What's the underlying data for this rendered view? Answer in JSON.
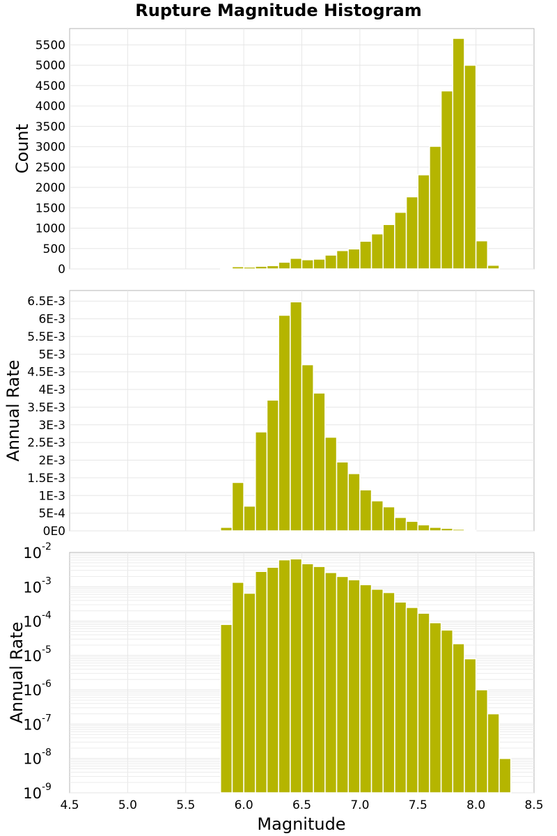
{
  "title": "Rupture Magnitude Histogram",
  "colors": {
    "bar": "#b5b500",
    "frame": "#b4b4b4",
    "grid": "#e6e6e6"
  },
  "chart_data": [
    {
      "type": "bar",
      "ylabel": "Count",
      "ylim": [
        0,
        5900
      ],
      "yticks": [
        0,
        500,
        1000,
        1500,
        2000,
        2500,
        3000,
        3500,
        4000,
        4500,
        5000,
        5500
      ],
      "ytick_labels": [
        "0",
        "500",
        "1000",
        "1500",
        "2000",
        "2500",
        "3000",
        "3500",
        "4000",
        "4500",
        "5000",
        "5500"
      ],
      "xlim": [
        4.5,
        8.5
      ],
      "bin_width": 0.1,
      "x": [
        5.85,
        5.95,
        6.05,
        6.15,
        6.25,
        6.35,
        6.45,
        6.55,
        6.65,
        6.75,
        6.85,
        6.95,
        7.05,
        7.15,
        7.25,
        7.35,
        7.45,
        7.55,
        7.65,
        7.75,
        7.85,
        7.95,
        8.05,
        8.15,
        8.25
      ],
      "values": [
        20,
        55,
        45,
        65,
        80,
        165,
        260,
        225,
        240,
        340,
        450,
        490,
        680,
        860,
        1090,
        1390,
        1770,
        2310,
        3010,
        4370,
        5660,
        5000,
        690,
        90,
        0
      ],
      "grid": true
    },
    {
      "type": "bar",
      "ylabel": "Annual Rate",
      "ylim": [
        0,
        0.0068
      ],
      "yticks": [
        0,
        0.0005,
        0.001,
        0.0015,
        0.002,
        0.0025,
        0.003,
        0.0035,
        0.004,
        0.0045,
        0.005,
        0.0055,
        0.006,
        0.0065
      ],
      "ytick_labels": [
        "0E0",
        "5E-4",
        "1E-3",
        "1.5E-3",
        "2E-3",
        "2.5E-3",
        "3E-3",
        "3.5E-3",
        "4E-3",
        "4.5E-3",
        "5E-3",
        "5.5E-3",
        "6E-3",
        "6.5E-3"
      ],
      "xlim": [
        4.5,
        8.5
      ],
      "bin_width": 0.1,
      "x": [
        5.85,
        5.95,
        6.05,
        6.15,
        6.25,
        6.35,
        6.45,
        6.55,
        6.65,
        6.75,
        6.85,
        6.95,
        7.05,
        7.15,
        7.25,
        7.35,
        7.45,
        7.55,
        7.65,
        7.75,
        7.85,
        7.95,
        8.05,
        8.15,
        8.25
      ],
      "values": [
        0.0001,
        0.00137,
        0.0007,
        0.0028,
        0.0037,
        0.0061,
        0.00648,
        0.0047,
        0.0039,
        0.00265,
        0.00195,
        0.00162,
        0.00116,
        0.00085,
        0.00068,
        0.00038,
        0.00027,
        0.00017,
        0.0001,
        7.2e-05,
        4.5e-05,
        1.5e-05,
        3e-06,
        5e-07,
        2e-08
      ],
      "grid": true
    },
    {
      "type": "bar",
      "ylabel": "Annual Rate",
      "yscale": "log",
      "ylim": [
        1e-09,
        0.01
      ],
      "ytick_labels": [
        {
          "base": "10",
          "exp": "-2"
        },
        {
          "base": "10",
          "exp": "-3"
        },
        {
          "base": "10",
          "exp": "-4"
        },
        {
          "base": "10",
          "exp": "-5"
        },
        {
          "base": "10",
          "exp": "-6"
        },
        {
          "base": "10",
          "exp": "-7"
        },
        {
          "base": "10",
          "exp": "-8"
        },
        {
          "base": "10",
          "exp": "-9"
        }
      ],
      "xlim": [
        4.5,
        8.5
      ],
      "xticks": [
        4.5,
        5.0,
        5.5,
        6.0,
        6.5,
        7.0,
        7.5,
        8.0,
        8.5
      ],
      "xtick_labels": [
        "4.5",
        "5.0",
        "5.5",
        "6.0",
        "6.5",
        "7.0",
        "7.5",
        "8.0",
        "8.5"
      ],
      "xlabel": "Magnitude",
      "bin_width": 0.1,
      "x": [
        5.85,
        5.95,
        6.05,
        6.15,
        6.25,
        6.35,
        6.45,
        6.55,
        6.65,
        6.75,
        6.85,
        6.95,
        7.05,
        7.15,
        7.25,
        7.35,
        7.45,
        7.55,
        7.65,
        7.75,
        7.85,
        7.95,
        8.05,
        8.15,
        8.25
      ],
      "values": [
        8e-05,
        0.00135,
        0.00065,
        0.0028,
        0.0037,
        0.0061,
        0.0065,
        0.0047,
        0.0039,
        0.0026,
        0.002,
        0.0016,
        0.00115,
        0.00085,
        0.00068,
        0.00036,
        0.00025,
        0.00017,
        9e-05,
        5.5e-05,
        2.2e-05,
        8e-06,
        1e-06,
        2e-07,
        1e-08
      ],
      "grid": true
    }
  ]
}
